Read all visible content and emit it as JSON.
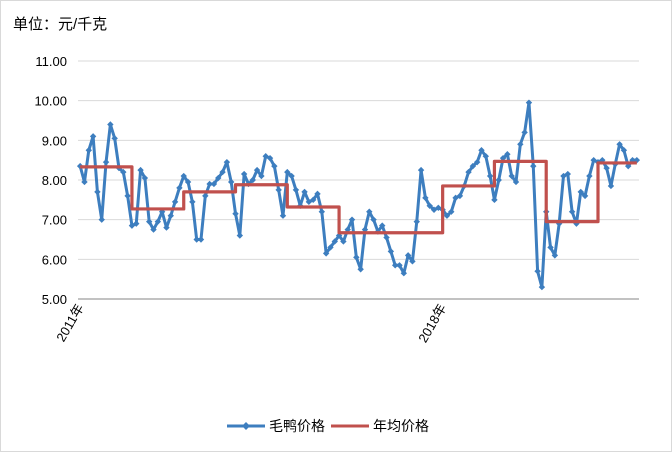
{
  "unit_label": "单位：元/千克",
  "chart_data": {
    "type": "line",
    "ylim": [
      5.0,
      11.0
    ],
    "y_ticks": [
      "5.00",
      "6.00",
      "7.00",
      "8.00",
      "9.00",
      "10.00",
      "11.00"
    ],
    "grid": true,
    "legend_position": "bottom",
    "x_labels": [
      {
        "index": 0,
        "text": "2011年"
      },
      {
        "index": 84,
        "text": "2018年"
      }
    ],
    "series": [
      {
        "name": "毛鸭价格",
        "color": "#3d7ebf",
        "marker": "diamond",
        "values": [
          8.35,
          7.95,
          8.75,
          9.1,
          7.7,
          7.0,
          8.45,
          9.4,
          9.05,
          8.3,
          8.2,
          7.6,
          6.85,
          6.9,
          8.25,
          8.05,
          6.95,
          6.75,
          6.95,
          7.2,
          6.8,
          7.1,
          7.45,
          7.8,
          8.1,
          7.95,
          7.45,
          6.5,
          6.5,
          7.6,
          7.9,
          7.9,
          8.05,
          8.2,
          8.45,
          7.95,
          7.15,
          6.6,
          8.15,
          7.9,
          8.0,
          8.25,
          8.1,
          8.6,
          8.55,
          8.35,
          7.75,
          7.1,
          8.2,
          8.1,
          7.75,
          7.35,
          7.7,
          7.45,
          7.5,
          7.65,
          7.2,
          6.15,
          6.3,
          6.45,
          6.6,
          6.45,
          6.75,
          7.0,
          6.05,
          5.75,
          6.75,
          7.2,
          7.0,
          6.7,
          6.85,
          6.55,
          6.2,
          5.85,
          5.85,
          5.65,
          6.1,
          5.95,
          6.95,
          8.25,
          7.55,
          7.35,
          7.25,
          7.3,
          7.25,
          7.1,
          7.2,
          7.55,
          7.6,
          7.85,
          8.2,
          8.35,
          8.45,
          8.75,
          8.6,
          8.1,
          7.5,
          8.0,
          8.55,
          8.65,
          8.1,
          7.95,
          8.9,
          9.2,
          9.95,
          8.35,
          5.7,
          5.3,
          7.2,
          6.3,
          6.1,
          6.9,
          8.1,
          8.15,
          7.2,
          6.9,
          7.7,
          7.6,
          8.1,
          8.5,
          8.45,
          8.5,
          8.3,
          7.85,
          8.4,
          8.9,
          8.75,
          8.35,
          8.5,
          8.5
        ]
      },
      {
        "name": "年均价格",
        "color": "#c0504d",
        "values": [
          8.33,
          8.33,
          8.33,
          8.33,
          8.33,
          8.33,
          8.33,
          8.33,
          8.33,
          8.33,
          8.33,
          8.33,
          7.27,
          7.27,
          7.27,
          7.27,
          7.27,
          7.27,
          7.27,
          7.27,
          7.27,
          7.27,
          7.27,
          7.27,
          7.7,
          7.7,
          7.7,
          7.7,
          7.7,
          7.7,
          7.7,
          7.7,
          7.7,
          7.7,
          7.7,
          7.7,
          7.88,
          7.88,
          7.88,
          7.88,
          7.88,
          7.88,
          7.88,
          7.88,
          7.88,
          7.88,
          7.88,
          7.88,
          7.32,
          7.32,
          7.32,
          7.32,
          7.32,
          7.32,
          7.32,
          7.32,
          7.32,
          7.32,
          7.32,
          7.32,
          6.67,
          6.67,
          6.67,
          6.67,
          6.67,
          6.67,
          6.67,
          6.67,
          6.67,
          6.67,
          6.67,
          6.67,
          6.67,
          6.67,
          6.67,
          6.67,
          6.67,
          6.67,
          6.67,
          6.67,
          6.67,
          6.67,
          6.67,
          6.67,
          7.85,
          7.85,
          7.85,
          7.85,
          7.85,
          7.85,
          7.85,
          7.85,
          7.85,
          7.85,
          7.85,
          7.85,
          8.47,
          8.47,
          8.47,
          8.47,
          8.47,
          8.47,
          8.47,
          8.47,
          8.47,
          8.47,
          8.47,
          8.47,
          6.95,
          6.95,
          6.95,
          6.95,
          6.95,
          6.95,
          6.95,
          6.95,
          6.95,
          6.95,
          6.95,
          6.95,
          8.43,
          8.43,
          8.43,
          8.43,
          8.43,
          8.43,
          8.43,
          8.43,
          8.43,
          8.43
        ]
      }
    ]
  }
}
